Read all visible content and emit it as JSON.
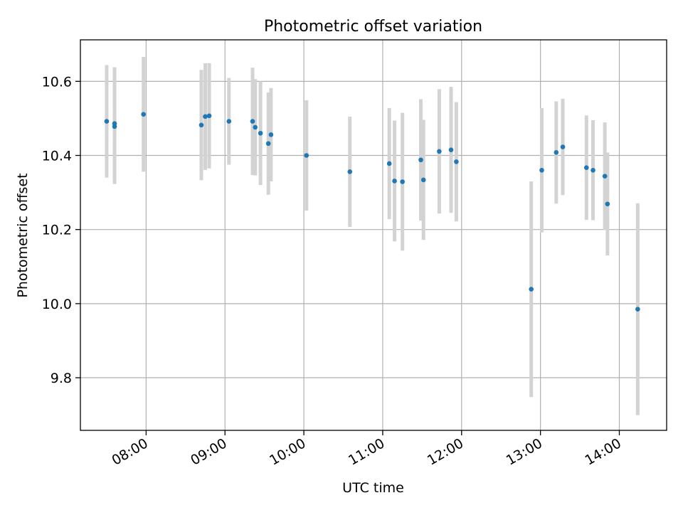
{
  "chart_data": {
    "type": "scatter",
    "title": "Photometric offset variation",
    "xlabel": "UTC time",
    "ylabel": "Photometric offset",
    "x_unit": "UTC time of day (HH:MM)",
    "x_ticks": [
      "08:00",
      "09:00",
      "10:00",
      "11:00",
      "12:00",
      "13:00",
      "14:00"
    ],
    "xlim": [
      "07:10",
      "14:36"
    ],
    "y_ticks": [
      "9.8",
      "10.0",
      "10.2",
      "10.4",
      "10.6"
    ],
    "ylim": [
      9.658,
      10.712
    ],
    "grid": true,
    "legend": "none",
    "colors": {
      "point": "#1f77b4",
      "errorbar": "#d3d3d3",
      "grid": "#b0b0b0"
    },
    "points": [
      {
        "x": "07:30",
        "y": 10.492,
        "err": 0.152
      },
      {
        "x": "07:36",
        "y": 10.478,
        "err": 0.155
      },
      {
        "x": "07:36",
        "y": 10.486,
        "err": 0.152
      },
      {
        "x": "07:58",
        "y": 10.511,
        "err": 0.155
      },
      {
        "x": "08:42",
        "y": 10.482,
        "err": 0.149
      },
      {
        "x": "08:45",
        "y": 10.505,
        "err": 0.144
      },
      {
        "x": "08:48",
        "y": 10.507,
        "err": 0.142
      },
      {
        "x": "09:03",
        "y": 10.492,
        "err": 0.117
      },
      {
        "x": "09:21",
        "y": 10.492,
        "err": 0.145
      },
      {
        "x": "09:23",
        "y": 10.476,
        "err": 0.13
      },
      {
        "x": "09:27",
        "y": 10.46,
        "err": 0.14
      },
      {
        "x": "09:33",
        "y": 10.432,
        "err": 0.138
      },
      {
        "x": "09:35",
        "y": 10.456,
        "err": 0.126
      },
      {
        "x": "10:02",
        "y": 10.4,
        "err": 0.149
      },
      {
        "x": "10:35",
        "y": 10.356,
        "err": 0.149
      },
      {
        "x": "11:05",
        "y": 10.378,
        "err": 0.15
      },
      {
        "x": "11:09",
        "y": 10.331,
        "err": 0.163
      },
      {
        "x": "11:15",
        "y": 10.329,
        "err": 0.186
      },
      {
        "x": "11:29",
        "y": 10.388,
        "err": 0.164
      },
      {
        "x": "11:31",
        "y": 10.334,
        "err": 0.162
      },
      {
        "x": "11:43",
        "y": 10.411,
        "err": 0.168
      },
      {
        "x": "11:52",
        "y": 10.415,
        "err": 0.17
      },
      {
        "x": "11:56",
        "y": 10.383,
        "err": 0.161
      },
      {
        "x": "12:53",
        "y": 10.039,
        "err": 0.291
      },
      {
        "x": "13:01",
        "y": 10.36,
        "err": 0.168
      },
      {
        "x": "13:12",
        "y": 10.408,
        "err": 0.138
      },
      {
        "x": "13:17",
        "y": 10.423,
        "err": 0.13
      },
      {
        "x": "13:35",
        "y": 10.367,
        "err": 0.141
      },
      {
        "x": "13:40",
        "y": 10.36,
        "err": 0.135
      },
      {
        "x": "13:49",
        "y": 10.344,
        "err": 0.145
      },
      {
        "x": "13:51",
        "y": 10.269,
        "err": 0.139
      },
      {
        "x": "14:14",
        "y": 9.985,
        "err": 0.286
      }
    ]
  }
}
